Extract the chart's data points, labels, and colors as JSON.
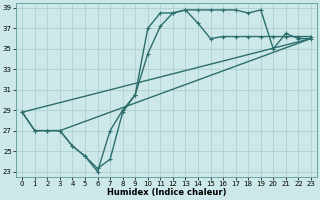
{
  "xlabel": "Humidex (Indice chaleur)",
  "bg_color": "#cce8e8",
  "line_color": "#2d6e6e",
  "grid_color": "#aacaca",
  "xlim": [
    -0.5,
    23.5
  ],
  "ylim": [
    22.5,
    39.5
  ],
  "yticks": [
    23,
    25,
    27,
    29,
    31,
    33,
    35,
    37,
    39
  ],
  "xticks": [
    0,
    1,
    2,
    3,
    4,
    5,
    6,
    7,
    8,
    9,
    10,
    11,
    12,
    13,
    14,
    15,
    16,
    17,
    18,
    19,
    20,
    21,
    22,
    23
  ],
  "line1_x": [
    0,
    1,
    2,
    3,
    4,
    5,
    6,
    7,
    8,
    9,
    10,
    11,
    12,
    13,
    14,
    15,
    16,
    17,
    18,
    19,
    20,
    21,
    22,
    23
  ],
  "line1_y": [
    28.8,
    27.0,
    27.0,
    27.0,
    25.5,
    24.5,
    23.0,
    27.0,
    29.0,
    30.5,
    37.0,
    38.5,
    38.5,
    38.8,
    38.8,
    38.8,
    38.8,
    38.8,
    38.5,
    38.8,
    35.0,
    36.5,
    36.0,
    36.0
  ],
  "line2_x": [
    0,
    1,
    2,
    3,
    4,
    5,
    6,
    7,
    8,
    9,
    10,
    11,
    12,
    13,
    14,
    15,
    16,
    17,
    18,
    19,
    20,
    21,
    22,
    23
  ],
  "line2_y": [
    28.8,
    27.0,
    27.0,
    27.0,
    25.5,
    24.5,
    23.3,
    24.2,
    28.8,
    30.5,
    34.5,
    37.2,
    38.5,
    38.8,
    37.5,
    36.0,
    36.2,
    36.2,
    36.2,
    36.2,
    36.2,
    36.2,
    36.2,
    36.2
  ],
  "line3_x": [
    0,
    23
  ],
  "line3_y": [
    28.8,
    36.0
  ],
  "line4_x": [
    3,
    23
  ],
  "line4_y": [
    27.0,
    36.0
  ],
  "linewidth": 1.0,
  "marker_size": 3.0
}
